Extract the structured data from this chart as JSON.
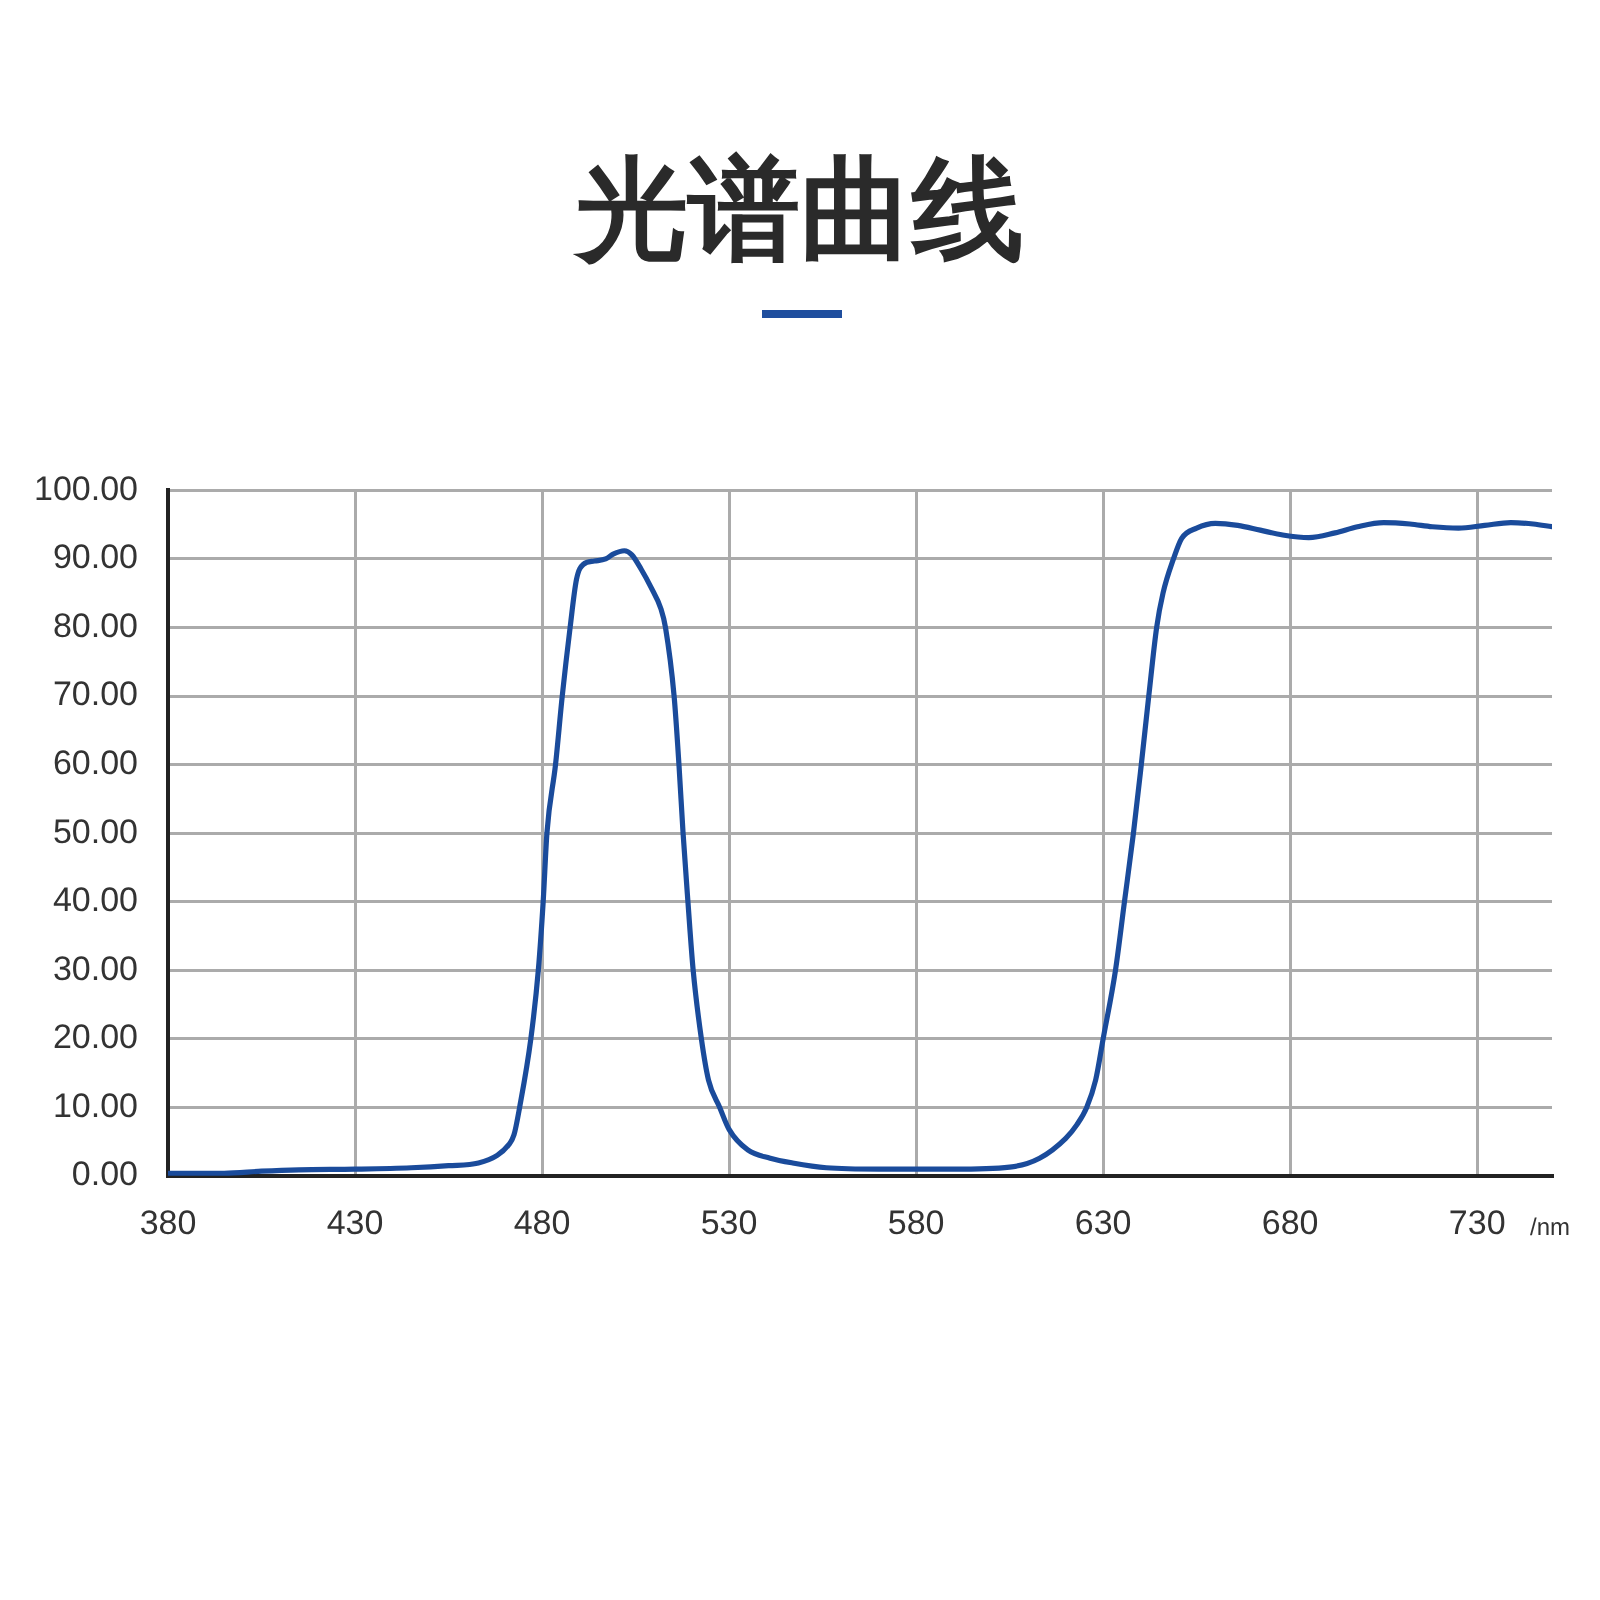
{
  "chart_data": {
    "type": "line",
    "title": "光谱曲线",
    "xlabel": "/nm",
    "x": [
      380,
      395,
      405,
      415,
      430,
      445,
      455,
      463,
      468,
      471,
      472.5,
      474,
      477,
      479,
      480.3,
      481.3,
      483.6,
      485.4,
      487.5,
      489.2,
      491,
      494,
      497,
      499,
      502,
      504,
      506.5,
      509,
      511.8,
      513,
      515.3,
      516.6,
      517.7,
      519,
      520.4,
      522.6,
      524.5,
      527.5,
      530,
      535,
      541,
      547,
      556,
      570,
      590,
      605,
      613,
      620,
      623,
      625.6,
      628,
      630,
      633.3,
      635.7,
      638.1,
      640.2,
      642.2,
      644.3,
      646,
      648.8,
      651,
      655,
      660,
      666,
      672,
      678,
      685,
      692,
      698,
      705,
      712,
      718,
      725,
      732,
      739,
      745,
      750
    ],
    "series": [
      {
        "color": "#1a4b9b",
        "values": [
          0.4,
          0.4,
          0.7,
          0.9,
          1.0,
          1.2,
          1.5,
          1.9,
          3.0,
          4.5,
          6,
          10,
          20,
          30,
          40,
          50,
          60,
          70,
          80,
          87,
          89.2,
          89.7,
          90.0,
          90.7,
          91.2,
          90.6,
          88.5,
          86,
          82.7,
          80,
          70,
          60,
          50,
          40,
          30,
          20,
          14,
          10,
          6.8,
          3.8,
          2.6,
          1.9,
          1.2,
          1.0,
          1.0,
          1.3,
          2.6,
          5.5,
          7.5,
          10,
          14,
          20,
          30,
          40,
          50,
          60,
          70,
          80,
          85,
          90,
          93,
          94.5,
          95.2,
          94.9,
          94.2,
          93.5,
          93.1,
          93.8,
          94.7,
          95.3,
          95.1,
          94.7,
          94.5,
          94.9,
          95.3,
          95.1,
          94.7
        ]
      }
    ],
    "xlim": [
      380,
      750
    ],
    "xticks": [
      380,
      430,
      480,
      530,
      580,
      630,
      680,
      730
    ],
    "ylim": [
      0,
      100
    ],
    "yticks": [
      {
        "value": 0,
        "label": "0.00"
      },
      {
        "value": 10,
        "label": "10.00"
      },
      {
        "value": 20,
        "label": "20.00"
      },
      {
        "value": 30,
        "label": "30.00"
      },
      {
        "value": 40,
        "label": "40.00"
      },
      {
        "value": 50,
        "label": "50.00"
      },
      {
        "value": 60,
        "label": "60.00"
      },
      {
        "value": 70,
        "label": "70.00"
      },
      {
        "value": 80,
        "label": "80.00"
      },
      {
        "value": 90,
        "label": "90.00"
      },
      {
        "value": 100,
        "label": "100.00"
      }
    ],
    "grid": true
  }
}
